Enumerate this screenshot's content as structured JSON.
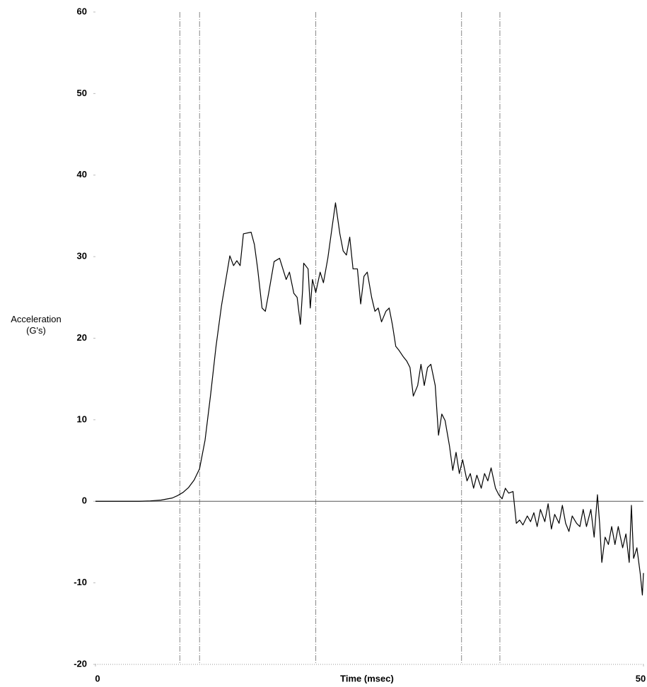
{
  "chart_data": {
    "type": "line",
    "xlabel": "Time (msec)",
    "ylabel": "Acceleration (G's)",
    "xlim": [
      0,
      50
    ],
    "xticks": [
      0,
      50
    ],
    "ylim": [
      -20,
      60
    ],
    "yticks": [
      -20,
      -10,
      0,
      10,
      20,
      30,
      40,
      50,
      60
    ],
    "reference_lines": [
      7.7,
      9.5,
      20.1,
      33.4,
      36.9
    ],
    "zero_line": true,
    "x": [
      0,
      2,
      4,
      5,
      6,
      7,
      7.5,
      8,
      8.5,
      9,
      9.5,
      10,
      10.5,
      11,
      11.5,
      12,
      12.26,
      12.6,
      12.9,
      13.2,
      13.5,
      14.2,
      14.5,
      14.8,
      15.2,
      15.5,
      15.8,
      16.3,
      16.8,
      17.1,
      17.4,
      17.7,
      18.1,
      18.4,
      18.7,
      18.9,
      19.0,
      19.4,
      19.6,
      19.8,
      20.1,
      20.5,
      20.8,
      21.2,
      21.6,
      21.9,
      22.3,
      22.6,
      22.9,
      23.2,
      23.5,
      23.9,
      24.2,
      24.5,
      24.8,
      25.2,
      25.5,
      25.8,
      26.1,
      26.5,
      26.8,
      27.1,
      27.4,
      27.7,
      28.1,
      28.4,
      28.7,
      29.0,
      29.4,
      29.7,
      30.0,
      30.3,
      30.6,
      31.0,
      31.3,
      31.6,
      31.9,
      32.3,
      32.6,
      32.9,
      33.2,
      33.5,
      33.9,
      34.2,
      34.5,
      34.8,
      35.2,
      35.5,
      35.8,
      36.1,
      36.5,
      36.8,
      37.1,
      37.4,
      37.7,
      38.1,
      38.4,
      38.7,
      39.0,
      39.4,
      39.7,
      40.0,
      40.3,
      40.6,
      41.0,
      41.3,
      41.6,
      41.9,
      42.3,
      42.6,
      42.9,
      43.2,
      43.5,
      43.9,
      44.2,
      44.5,
      44.8,
      45.2,
      45.5,
      45.8,
      46.0,
      46.2,
      46.5,
      46.8,
      47.1,
      47.4,
      47.7,
      48.1,
      48.4,
      48.7,
      48.9,
      49.1,
      49.4,
      49.7,
      49.9,
      50.0
    ],
    "series": [
      {
        "color": "#000000",
        "values": [
          0,
          0,
          0,
          0.05,
          0.15,
          0.4,
          0.7,
          1.1,
          1.7,
          2.6,
          4.0,
          7.5,
          13,
          19,
          24,
          28,
          30.1,
          28.9,
          29.5,
          28.9,
          32.8,
          33.0,
          31.5,
          28.5,
          23.7,
          23.3,
          25.5,
          29.4,
          29.8,
          28.5,
          27.2,
          28.1,
          25.5,
          25.0,
          21.7,
          25.9,
          29.2,
          28.5,
          23.7,
          27.2,
          25.6,
          28.1,
          26.8,
          29.8,
          33.7,
          36.6,
          32.8,
          30.7,
          30.2,
          32.4,
          28.5,
          28.5,
          24.2,
          27.6,
          28.1,
          25.0,
          23.3,
          23.7,
          22.0,
          23.3,
          23.7,
          21.6,
          19.0,
          18.5,
          17.7,
          17.2,
          16.4,
          12.9,
          14.2,
          16.8,
          14.2,
          16.4,
          16.8,
          14.2,
          8.1,
          10.7,
          9.9,
          6.8,
          3.8,
          6.0,
          3.4,
          5.1,
          2.5,
          3.4,
          1.6,
          3.2,
          1.6,
          3.4,
          2.5,
          4.1,
          1.6,
          0.8,
          0.3,
          1.6,
          1.0,
          1.2,
          -2.7,
          -2.3,
          -2.9,
          -1.8,
          -2.5,
          -1.4,
          -3.1,
          -1.0,
          -2.5,
          -0.3,
          -3.4,
          -1.6,
          -2.7,
          -0.5,
          -2.7,
          -3.7,
          -1.8,
          -2.7,
          -3.1,
          -1.0,
          -3.1,
          -1.0,
          -4.4,
          0.8,
          -2.7,
          -7.5,
          -4.4,
          -5.3,
          -3.1,
          -5.3,
          -3.1,
          -5.7,
          -4.0,
          -7.5,
          -0.5,
          -7.0,
          -5.7,
          -8.8,
          -11.5,
          -8.8
        ]
      }
    ]
  }
}
